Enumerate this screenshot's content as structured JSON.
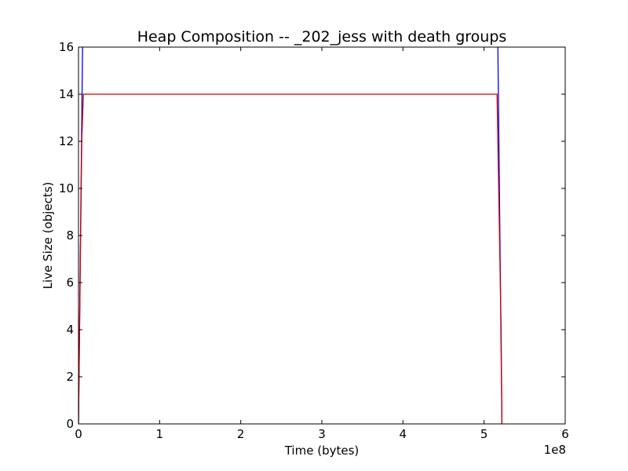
{
  "chart_data": {
    "type": "line",
    "title": "Heap Composition -- _202_jess with death groups",
    "xlabel": "Time (bytes)",
    "ylabel": "Live Size (objects)",
    "x_offset_label": "1e8",
    "xlim": [
      0,
      6
    ],
    "ylim": [
      0,
      16
    ],
    "x_ticks": [
      0,
      1,
      2,
      3,
      4,
      5,
      6
    ],
    "x_tick_labels": [
      "0",
      "1",
      "2",
      "3",
      "4",
      "5",
      "6"
    ],
    "y_ticks": [
      0,
      2,
      4,
      6,
      8,
      10,
      12,
      14,
      16
    ],
    "y_tick_labels": [
      "0",
      "2",
      "4",
      "6",
      "8",
      "10",
      "12",
      "14",
      "16"
    ],
    "grid": false,
    "series": [
      {
        "color": "#0000ff",
        "x": [
          0.0,
          0.05,
          0.06,
          5.16,
          5.17,
          5.22,
          5.22
        ],
        "y": [
          0,
          16,
          16.5,
          16.5,
          16,
          0,
          0
        ]
      },
      {
        "color": "#cc0000",
        "x": [
          0.0,
          0.04,
          0.06,
          5.16,
          5.21,
          5.22
        ],
        "y": [
          0,
          12,
          14,
          14,
          4,
          0
        ]
      }
    ]
  }
}
